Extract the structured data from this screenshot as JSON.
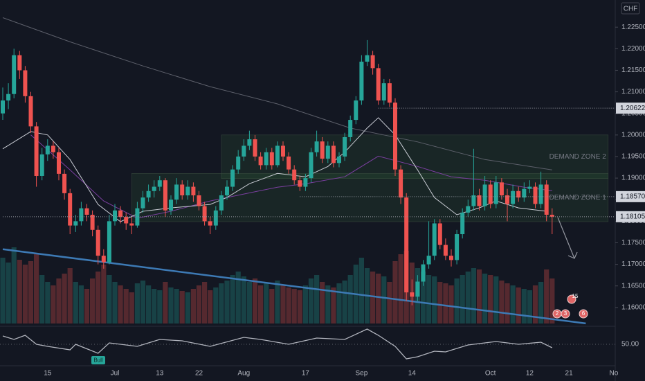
{
  "chart_data": [
    {
      "type": "candlestick",
      "currency": "CHF",
      "categories": [
        null,
        null,
        null,
        null,
        null,
        null,
        null,
        null,
        "15",
        null,
        null,
        null,
        null,
        null,
        null,
        null,
        null,
        null,
        null,
        null,
        "Jul",
        null,
        null,
        null,
        null,
        null,
        null,
        null,
        "13",
        null,
        null,
        null,
        null,
        null,
        null,
        "22",
        null,
        null,
        null,
        null,
        null,
        null,
        null,
        "Aug",
        null,
        null,
        null,
        null,
        null,
        null,
        null,
        null,
        null,
        null,
        "17",
        null,
        null,
        null,
        null,
        null,
        null,
        null,
        null,
        null,
        "Sep",
        null,
        null,
        null,
        null,
        null,
        null,
        null,
        null,
        "14",
        null,
        null,
        null,
        null,
        null,
        null,
        null,
        null,
        null,
        null,
        null,
        null,
        null,
        "Oct",
        null,
        null,
        null,
        null,
        null,
        null,
        "12",
        null,
        null,
        null,
        null,
        null,
        null,
        "21",
        null,
        null,
        null,
        null,
        null,
        null,
        null,
        "No"
      ],
      "ohlc": [
        [
          1.205,
          1.211,
          1.2035,
          1.208
        ],
        [
          1.208,
          1.212,
          1.206,
          1.2095
        ],
        [
          1.2095,
          1.22,
          1.2085,
          1.2185
        ],
        [
          1.2185,
          1.2195,
          1.213,
          1.215
        ],
        [
          1.215,
          1.216,
          1.2075,
          1.209
        ],
        [
          1.209,
          1.21,
          1.2005,
          1.202
        ],
        [
          1.202,
          1.203,
          1.188,
          1.1905
        ],
        [
          1.1905,
          1.197,
          1.1895,
          1.1955
        ],
        [
          1.1955,
          1.199,
          1.194,
          1.1975
        ],
        [
          1.1975,
          1.1985,
          1.1945,
          1.196
        ],
        [
          1.196,
          1.197,
          1.1895,
          1.191
        ],
        [
          1.191,
          1.192,
          1.185,
          1.1865
        ],
        [
          1.1865,
          1.1875,
          1.177,
          1.179
        ],
        [
          1.179,
          1.1815,
          1.1775,
          1.18
        ],
        [
          1.18,
          1.1845,
          1.179,
          1.183
        ],
        [
          1.183,
          1.184,
          1.18,
          1.1815
        ],
        [
          1.1815,
          1.1825,
          1.1765,
          1.178
        ],
        [
          1.178,
          1.179,
          1.17,
          1.172
        ],
        [
          1.172,
          1.1735,
          1.169,
          1.1705
        ],
        [
          1.1705,
          1.1815,
          1.17,
          1.18
        ],
        [
          1.18,
          1.184,
          1.179,
          1.1825
        ],
        [
          1.1825,
          1.1835,
          1.1795,
          1.181
        ],
        [
          1.181,
          1.182,
          1.178,
          1.1795
        ],
        [
          1.1795,
          1.181,
          1.177,
          1.179
        ],
        [
          1.179,
          1.1845,
          1.1785,
          1.183
        ],
        [
          1.183,
          1.187,
          1.182,
          1.1855
        ],
        [
          1.1855,
          1.1885,
          1.1845,
          1.187
        ],
        [
          1.187,
          1.1895,
          1.1855,
          1.188
        ],
        [
          1.188,
          1.1905,
          1.187,
          1.1895
        ],
        [
          1.1895,
          1.19,
          1.181,
          1.1825
        ],
        [
          1.1825,
          1.186,
          1.1815,
          1.185
        ],
        [
          1.185,
          1.19,
          1.184,
          1.1885
        ],
        [
          1.1885,
          1.1895,
          1.185,
          1.186
        ],
        [
          1.186,
          1.1895,
          1.185,
          1.188
        ],
        [
          1.188,
          1.189,
          1.1845,
          1.186
        ],
        [
          1.186,
          1.187,
          1.1825,
          1.1835
        ],
        [
          1.1835,
          1.1845,
          1.179,
          1.18
        ],
        [
          1.18,
          1.181,
          1.177,
          1.179
        ],
        [
          1.179,
          1.1835,
          1.178,
          1.1825
        ],
        [
          1.1825,
          1.187,
          1.1815,
          1.186
        ],
        [
          1.186,
          1.1895,
          1.185,
          1.188
        ],
        [
          1.188,
          1.193,
          1.187,
          1.192
        ],
        [
          1.192,
          1.1965,
          1.191,
          1.195
        ],
        [
          1.195,
          1.199,
          1.194,
          1.1975
        ],
        [
          1.1975,
          1.201,
          1.1965,
          1.199
        ],
        [
          1.199,
          1.2,
          1.194,
          1.195
        ],
        [
          1.195,
          1.196,
          1.192,
          1.193
        ],
        [
          1.193,
          1.197,
          1.192,
          1.196
        ],
        [
          1.196,
          1.197,
          1.192,
          1.193
        ],
        [
          1.193,
          1.1985,
          1.1925,
          1.1975
        ],
        [
          1.1975,
          1.1985,
          1.194,
          1.195
        ],
        [
          1.195,
          1.196,
          1.191,
          1.192
        ],
        [
          1.192,
          1.193,
          1.1885,
          1.1895
        ],
        [
          1.1895,
          1.1905,
          1.187,
          1.188
        ],
        [
          1.188,
          1.191,
          1.187,
          1.19
        ],
        [
          1.19,
          1.197,
          1.189,
          1.196
        ],
        [
          1.196,
          1.201,
          1.195,
          1.1985
        ],
        [
          1.1985,
          1.1995,
          1.1935,
          1.1945
        ],
        [
          1.1945,
          1.1985,
          1.1935,
          1.1975
        ],
        [
          1.1975,
          1.1985,
          1.1925,
          1.1935
        ],
        [
          1.1935,
          1.196,
          1.1925,
          1.195
        ],
        [
          1.195,
          1.2005,
          1.194,
          1.1995
        ],
        [
          1.1995,
          1.2045,
          1.1985,
          1.2035
        ],
        [
          1.2035,
          1.209,
          1.2025,
          1.208
        ],
        [
          1.208,
          1.2185,
          1.207,
          1.217
        ],
        [
          1.217,
          1.222,
          1.216,
          1.2185
        ],
        [
          1.2185,
          1.2195,
          1.214,
          1.2155
        ],
        [
          1.2155,
          1.2165,
          1.207,
          1.208
        ],
        [
          1.208,
          1.213,
          1.207,
          1.212
        ],
        [
          1.212,
          1.213,
          1.2065,
          1.2075
        ],
        [
          1.2075,
          1.2085,
          1.1905,
          1.192
        ],
        [
          1.192,
          1.193,
          1.184,
          1.1855
        ],
        [
          1.1855,
          1.1865,
          1.1615,
          1.1635
        ],
        [
          1.1635,
          1.1665,
          1.1605,
          1.1625
        ],
        [
          1.1625,
          1.1675,
          1.1615,
          1.166
        ],
        [
          1.166,
          1.171,
          1.165,
          1.17
        ],
        [
          1.17,
          1.18,
          1.169,
          1.172
        ],
        [
          1.172,
          1.1805,
          1.171,
          1.1795
        ],
        [
          1.1795,
          1.1805,
          1.1735,
          1.1745
        ],
        [
          1.1745,
          1.176,
          1.171,
          1.172
        ],
        [
          1.172,
          1.1735,
          1.1695,
          1.171
        ],
        [
          1.171,
          1.178,
          1.17,
          1.177
        ],
        [
          1.177,
          1.183,
          1.176,
          1.182
        ],
        [
          1.182,
          1.185,
          1.181,
          1.1835
        ],
        [
          1.1835,
          1.1968,
          1.1825,
          1.186
        ],
        [
          1.186,
          1.1875,
          1.1825,
          1.1835
        ],
        [
          1.1835,
          1.1905,
          1.1825,
          1.1885
        ],
        [
          1.1885,
          1.1895,
          1.183,
          1.184
        ],
        [
          1.184,
          1.1905,
          1.183,
          1.189
        ],
        [
          1.189,
          1.19,
          1.185,
          1.186
        ],
        [
          1.186,
          1.1875,
          1.18,
          1.184
        ],
        [
          1.184,
          1.1885,
          1.183,
          1.187
        ],
        [
          1.187,
          1.188,
          1.1845,
          1.1855
        ],
        [
          1.1855,
          1.189,
          1.1845,
          1.1875
        ],
        [
          1.1875,
          1.1895,
          1.1865,
          1.188
        ],
        [
          1.188,
          1.189,
          1.183,
          1.184
        ],
        [
          1.184,
          1.1915,
          1.183,
          1.1885
        ],
        [
          1.1885,
          1.1895,
          1.18,
          1.1815
        ],
        [
          1.1815,
          1.183,
          1.177,
          1.18105
        ],
        null,
        null,
        null,
        null,
        null,
        null,
        null,
        null,
        null,
        null,
        null
      ],
      "volume": [
        95,
        88,
        110,
        92,
        85,
        90,
        100,
        70,
        60,
        55,
        65,
        72,
        80,
        60,
        55,
        50,
        65,
        75,
        85,
        70,
        60,
        55,
        50,
        45,
        58,
        62,
        55,
        50,
        48,
        60,
        52,
        50,
        47,
        45,
        50,
        55,
        60,
        48,
        52,
        58,
        62,
        70,
        75,
        68,
        60,
        65,
        55,
        58,
        50,
        62,
        55,
        52,
        50,
        48,
        55,
        65,
        70,
        60,
        55,
        52,
        58,
        62,
        70,
        85,
        95,
        80,
        75,
        72,
        68,
        60,
        90,
        100,
        105,
        88,
        80,
        75,
        70,
        68,
        60,
        58,
        55,
        65,
        70,
        75,
        80,
        78,
        72,
        70,
        68,
        62,
        58,
        55,
        52,
        50,
        48,
        55,
        60,
        78,
        65,
        null,
        null,
        null,
        null,
        null,
        null,
        null,
        null,
        null,
        null,
        null
      ],
      "up_color": "#26a69a",
      "down_color": "#ef5350",
      "ylim": [
        1.1558,
        1.2313
      ],
      "yticks": [
        {
          "value": 1.225,
          "label": "1.22500"
        },
        {
          "value": 1.22,
          "label": "1.22000"
        },
        {
          "value": 1.215,
          "label": "1.21500"
        },
        {
          "value": 1.21,
          "label": "1.21000"
        },
        {
          "value": 1.205,
          "label": "1.20500"
        },
        {
          "value": 1.2,
          "label": "1.20000"
        },
        {
          "value": 1.195,
          "label": "1.19500"
        },
        {
          "value": 1.19,
          "label": "1.19000"
        },
        {
          "value": 1.185,
          "label": "1.18500"
        },
        {
          "value": 1.18,
          "label": "1.18000"
        },
        {
          "value": 1.175,
          "label": "1.17500"
        },
        {
          "value": 1.17,
          "label": "1.17000"
        },
        {
          "value": 1.165,
          "label": "1.16500"
        },
        {
          "value": 1.16,
          "label": "1.16000"
        }
      ],
      "lines": [
        {
          "color": "#5d606b",
          "x": [
            0,
            12,
            25,
            37,
            49,
            62,
            74,
            86,
            98
          ],
          "values": [
            1.2272,
            1.2216,
            1.216,
            1.2112,
            1.2072,
            1.2016,
            1.1984,
            1.1943,
            1.1919
          ]
        },
        {
          "color": "#7b3fa0",
          "x": [
            5,
            12,
            18,
            24,
            30,
            37,
            43,
            49,
            54,
            61,
            67,
            74,
            80,
            86,
            93,
            98
          ],
          "values": [
            1.2,
            1.1919,
            1.1847,
            1.1807,
            1.1823,
            1.1847,
            1.1863,
            1.1879,
            1.1887,
            1.1903,
            1.1951,
            1.1927,
            1.1903,
            1.1895,
            1.1879,
            1.1871
          ]
        },
        {
          "color": "#c9ccd4",
          "x": [
            0,
            5,
            8,
            12,
            17,
            21,
            25,
            30,
            37,
            40,
            44,
            49,
            54,
            58,
            61,
            65,
            67,
            70,
            74,
            77,
            81,
            85,
            88,
            92,
            97
          ],
          "values": [
            1.1968,
            1.2008,
            1.2,
            1.1943,
            1.1839,
            1.1799,
            1.1823,
            1.1831,
            1.1839,
            1.1855,
            1.1887,
            1.1911,
            1.1903,
            1.1927,
            1.196,
            1.2016,
            1.204,
            1.2,
            1.1919,
            1.1855,
            1.1815,
            1.1831,
            1.1847,
            1.1831,
            1.1823
          ]
        }
      ],
      "trend_line": {
        "color": "#3d7ab5",
        "x": [
          0,
          104
        ],
        "values": [
          1.1735,
          1.1563
        ]
      },
      "zones": [
        {
          "label": "DEMAND ZONE 2",
          "from": 39,
          "to": 108,
          "top": 1.2,
          "bottom": 1.1899
        },
        {
          "label": "DEMAND ZONE 1",
          "from": 23,
          "to": 108,
          "top": 1.1911,
          "bottom": 1.1799
        }
      ],
      "price_lines": [
        {
          "value": 1.20622,
          "label": "1.20622",
          "start": 67
        },
        {
          "value": 1.1857,
          "label": "1.18570",
          "start": 53
        },
        {
          "value": 1.18105,
          "label": "1.18105",
          "start": 0
        }
      ],
      "events": [
        "15",
        "2",
        "3",
        "6"
      ]
    },
    {
      "type": "line",
      "annotation": "Bull",
      "color": "#b2b5be",
      "x": [
        0,
        2,
        4,
        6,
        8,
        12,
        13,
        17,
        19,
        24,
        28,
        32,
        37,
        43,
        46,
        51,
        56,
        61,
        65,
        67,
        70,
        72,
        74,
        77,
        79,
        83,
        86,
        88,
        92,
        96,
        98
      ],
      "values": [
        64.4,
        58.4,
        65.6,
        50,
        46.4,
        40.4,
        50,
        34.4,
        52.4,
        46.4,
        58.4,
        56,
        46.4,
        62,
        58.4,
        50,
        60.8,
        58.4,
        76.4,
        65.6,
        46.4,
        24.8,
        28.4,
        38,
        36.8,
        48.8,
        52.4,
        54.8,
        50,
        53.6,
        44
      ],
      "ylim": [
        20,
        80
      ],
      "yticks": [
        {
          "value": 50,
          "label": "50.00"
        }
      ]
    }
  ]
}
